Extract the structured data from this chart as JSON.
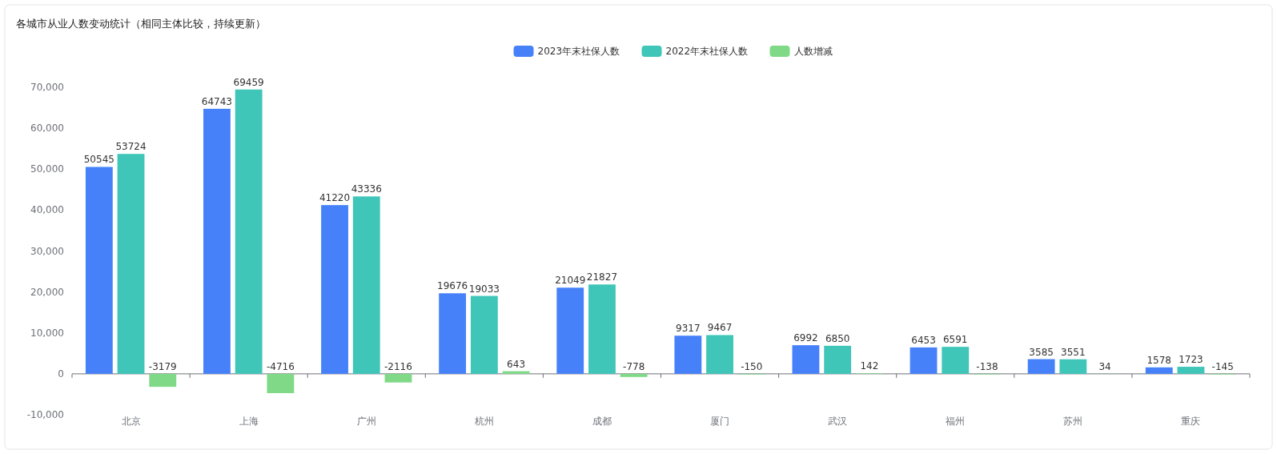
{
  "chart_data": {
    "type": "bar",
    "title": "各城市从业人数变动统计（相同主体比较，持续更新）",
    "categories": [
      "北京",
      "上海",
      "广州",
      "杭州",
      "成都",
      "厦门",
      "武汉",
      "福州",
      "苏州",
      "重庆"
    ],
    "series": [
      {
        "name": "2023年末社保人数",
        "color": "#4681f9",
        "values": [
          50545,
          64743,
          41220,
          19676,
          21049,
          9317,
          6992,
          6453,
          3585,
          1578
        ]
      },
      {
        "name": "2022年末社保人数",
        "color": "#3fc6b9",
        "values": [
          53724,
          69459,
          43336,
          19033,
          21827,
          9467,
          6850,
          6591,
          3551,
          1723
        ]
      },
      {
        "name": "人数增减",
        "color": "#80d987",
        "values": [
          -3179,
          -4716,
          -2116,
          643,
          -778,
          -150,
          142,
          -138,
          34,
          -145
        ]
      }
    ],
    "ylim": [
      -10000,
      70000
    ],
    "yticks": [
      {
        "value": -10000,
        "label": "-10,000"
      },
      0,
      {
        "value": 10000,
        "label": "10,000"
      },
      {
        "value": 20000,
        "label": "20,000"
      },
      {
        "value": 30000,
        "label": "30,000"
      },
      {
        "value": 40000,
        "label": "40,000"
      },
      {
        "value": 50000,
        "label": "50,000"
      },
      {
        "value": 60000,
        "label": "60,000"
      },
      {
        "value": 70000,
        "label": "70,000"
      }
    ],
    "data_labels": true,
    "legend": "top"
  }
}
